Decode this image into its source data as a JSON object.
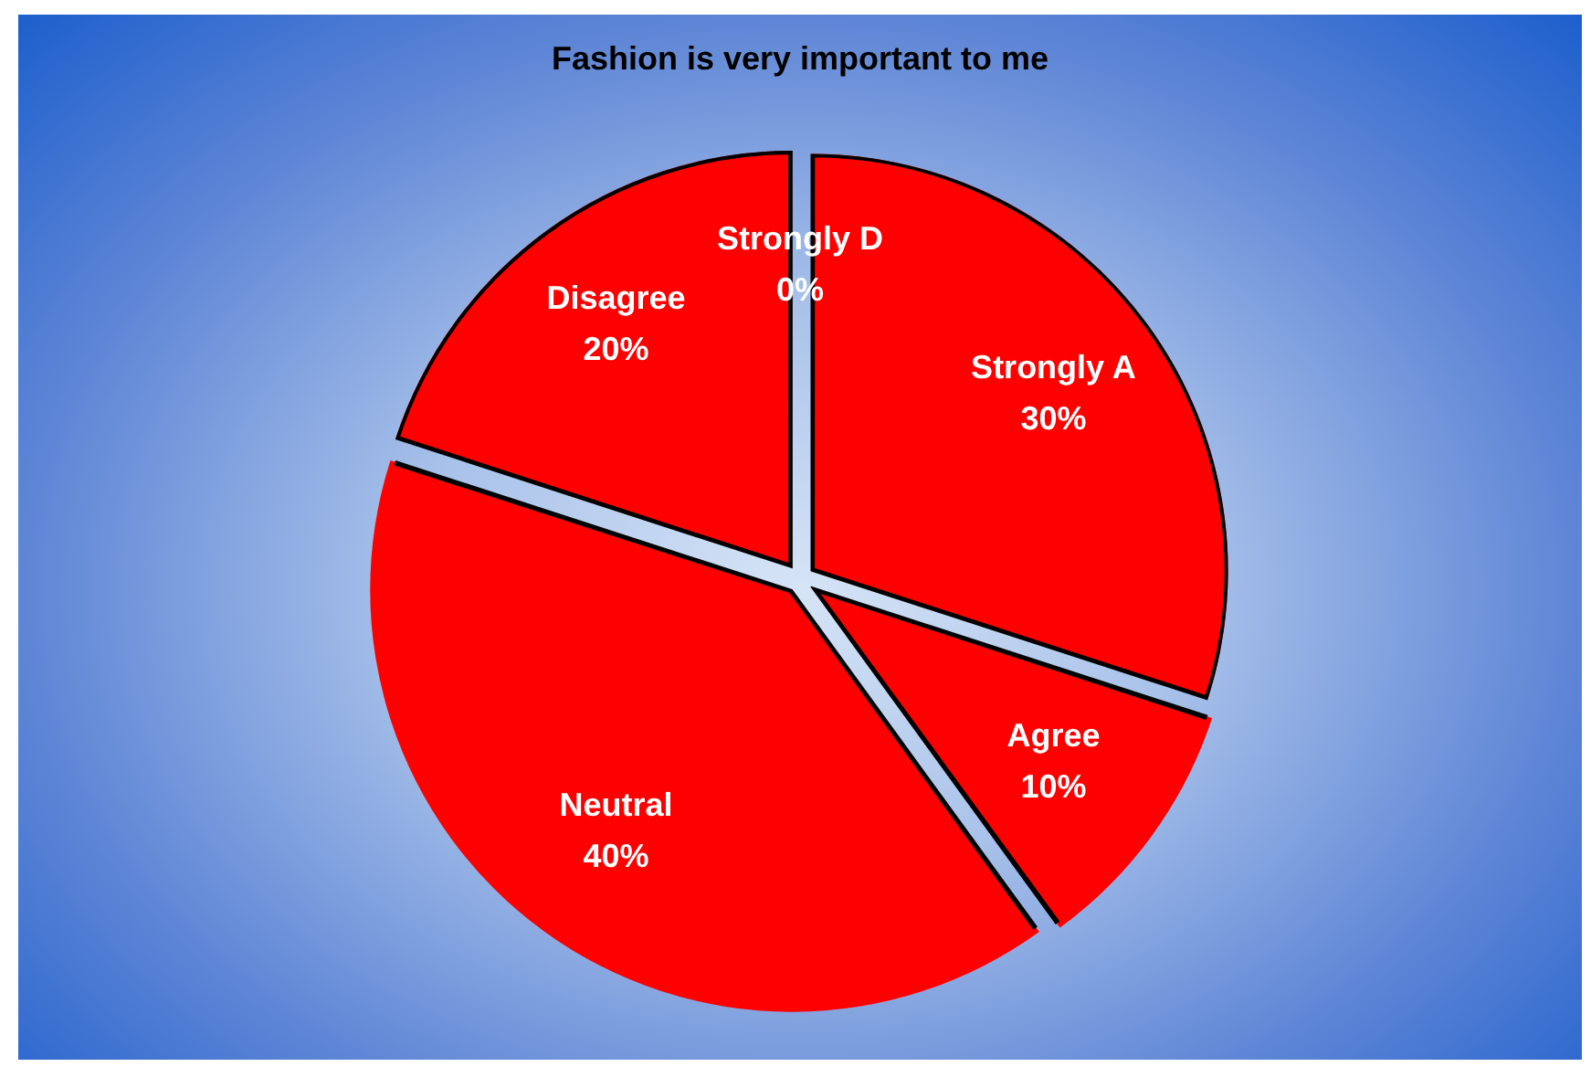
{
  "chart_data": {
    "type": "pie",
    "title": "Fashion is very important to me",
    "categories": [
      "Strongly A",
      "Agree",
      "Neutral",
      "Disagree",
      "Strongly D"
    ],
    "values": [
      30,
      10,
      40,
      20,
      0
    ],
    "colors": [
      "#ff0000",
      "#ff0000",
      "#ff0000",
      "#ff0000",
      "#ff0000"
    ],
    "value_labels": [
      "30%",
      "10%",
      "40%",
      "20%",
      "0%"
    ],
    "legend": false
  }
}
